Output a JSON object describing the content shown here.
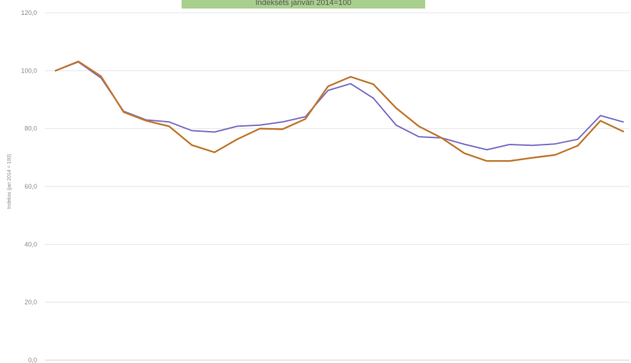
{
  "chart_data": {
    "type": "line",
    "title": "Indeksēts janvāri 2014=100",
    "ylabel": "Indekss (jan 2014 = 100)",
    "xlabel": "",
    "ylim": [
      0,
      120
    ],
    "yticks": [
      "0,0",
      "20,0",
      "40,0",
      "60,0",
      "80,0",
      "100,0",
      "120,0"
    ],
    "grid": true,
    "x": [
      1,
      2,
      3,
      4,
      5,
      6,
      7,
      8,
      9,
      10,
      11,
      12,
      13,
      14,
      15,
      16,
      17,
      18,
      19,
      20,
      21,
      22,
      23,
      24,
      25,
      26
    ],
    "series": [
      {
        "color": "#7b6fc4",
        "values": [
          100.0,
          103.0,
          97.5,
          86.0,
          83.0,
          82.3,
          79.3,
          78.8,
          80.8,
          81.2,
          82.3,
          84.1,
          93.2,
          95.5,
          90.5,
          81.2,
          77.2,
          76.8,
          74.6,
          72.7,
          74.5,
          74.2,
          74.7,
          76.3,
          84.5,
          82.3
        ]
      },
      {
        "color": "#c0772e",
        "values": [
          100.0,
          103.2,
          98.1,
          85.7,
          82.7,
          80.8,
          74.3,
          71.8,
          76.3,
          80.0,
          79.8,
          83.3,
          94.6,
          97.9,
          95.3,
          87.1,
          80.8,
          76.8,
          71.5,
          68.8,
          68.8,
          69.9,
          70.9,
          74.1,
          82.7,
          79.0
        ]
      }
    ]
  }
}
